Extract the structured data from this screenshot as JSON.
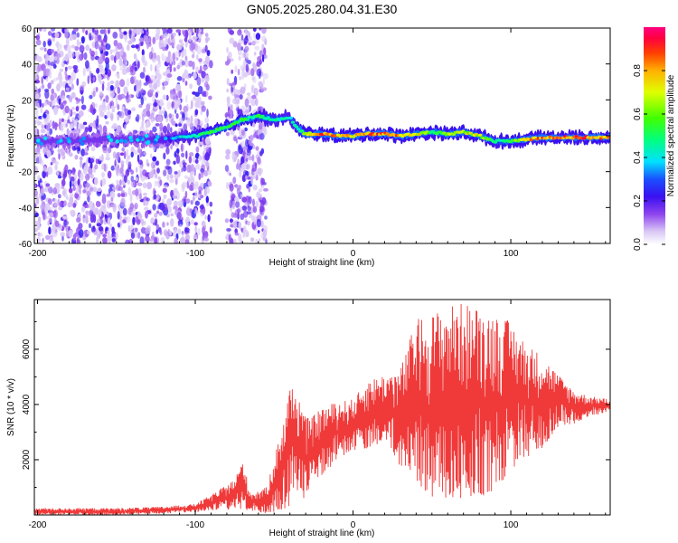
{
  "title": "GN05.2025.280.04.31.E30",
  "colors": {
    "snr_line": "#f03a3a",
    "frame": "#000000",
    "background": "#ffffff",
    "colorbar_stops": [
      "#ffffff",
      "#d9c7f5",
      "#8e44ee",
      "#5a16e0",
      "#1a1aff",
      "#00e0ff",
      "#00ff80",
      "#40ff00",
      "#e0ff00",
      "#ffb000",
      "#ff4000",
      "#ff0040",
      "#ff0080"
    ]
  },
  "chart_data": [
    {
      "type": "heatmap",
      "title": "GN05.2025.280.04.31.E30",
      "xlabel": "Height of straight line (km)",
      "ylabel": "Frequency (Hz)",
      "xlim": [
        -202,
        163
      ],
      "ylim": [
        -60,
        60
      ],
      "xticks": [
        -200,
        -100,
        0,
        100
      ],
      "xtick_labels": [
        "-200",
        "-100",
        "0",
        "100"
      ],
      "yticks": [
        -60,
        -40,
        -20,
        0,
        20,
        40,
        60
      ],
      "ytick_labels": [
        "-60",
        "-40",
        "-20",
        "0",
        "20",
        "40",
        "60"
      ],
      "colorbar": {
        "label": "Normalized spectral amplitude",
        "range": [
          0,
          1
        ],
        "ticks": [
          0.0,
          0.2,
          0.4,
          0.6,
          0.8
        ],
        "tick_labels": [
          "0.0",
          "0.2",
          "0.4",
          "0.6",
          "0.8"
        ]
      },
      "ridge": {
        "x": [
          -202,
          -180,
          -160,
          -140,
          -120,
          -110,
          -100,
          -90,
          -80,
          -70,
          -60,
          -50,
          -40,
          -35,
          -30,
          -20,
          -10,
          0,
          10,
          20,
          30,
          40,
          50,
          60,
          70,
          80,
          90,
          100,
          110,
          120,
          130,
          140,
          150,
          163
        ],
        "frequency": [
          -3,
          -3,
          -2,
          -2,
          -2,
          -1,
          0,
          2,
          5,
          9,
          11,
          9,
          10,
          4,
          1,
          1,
          0,
          0,
          1,
          1,
          0,
          1,
          2,
          1,
          2,
          0,
          -3,
          -3,
          -2,
          -1,
          -1,
          -1,
          -1,
          -1
        ],
        "amplitude": [
          0.3,
          0.3,
          0.3,
          0.3,
          0.35,
          0.45,
          0.5,
          0.6,
          0.55,
          0.6,
          0.55,
          0.5,
          0.5,
          0.5,
          0.75,
          0.95,
          0.9,
          0.85,
          0.95,
          0.95,
          0.9,
          0.85,
          0.6,
          0.7,
          0.75,
          0.8,
          0.5,
          0.6,
          0.95,
          0.95,
          0.95,
          0.95,
          0.95,
          0.9
        ]
      },
      "noise_region_km": [
        [
          -202,
          -90
        ],
        [
          -80,
          -55
        ]
      ]
    },
    {
      "type": "line",
      "xlabel": "Height of straight line (km)",
      "ylabel": "SNR (10 * v/v)",
      "xlim": [
        -202,
        163
      ],
      "ylim": [
        0,
        7800
      ],
      "xticks": [
        -200,
        -100,
        0,
        100
      ],
      "xtick_labels": [
        "-200",
        "-100",
        "0",
        "100"
      ],
      "yticks": [
        2000,
        4000,
        6000
      ],
      "ytick_labels": [
        "2000",
        "4000",
        "6000"
      ],
      "series": [
        {
          "name": "SNR",
          "envelope_x": [
            -202,
            -150,
            -120,
            -100,
            -85,
            -75,
            -70,
            -65,
            -55,
            -45,
            -40,
            -35,
            -30,
            -25,
            -20,
            -10,
            0,
            10,
            20,
            30,
            40,
            50,
            60,
            70,
            80,
            90,
            100,
            110,
            120,
            130,
            140,
            150,
            163
          ],
          "envelope_lower": [
            0,
            0,
            50,
            100,
            150,
            200,
            200,
            100,
            50,
            150,
            300,
            800,
            400,
            1200,
            1400,
            1900,
            2300,
            2400,
            2700,
            1600,
            1000,
            600,
            500,
            500,
            600,
            800,
            1600,
            2000,
            2400,
            3200,
            3300,
            3600,
            3700
          ],
          "envelope_upper": [
            250,
            250,
            300,
            400,
            900,
            1300,
            2000,
            800,
            1000,
            3200,
            4700,
            4500,
            3500,
            3600,
            3900,
            4100,
            4200,
            4900,
            5100,
            5300,
            7100,
            7300,
            7600,
            7700,
            7500,
            7300,
            7000,
            6200,
            5800,
            5100,
            4500,
            4300,
            4200
          ]
        }
      ]
    }
  ]
}
